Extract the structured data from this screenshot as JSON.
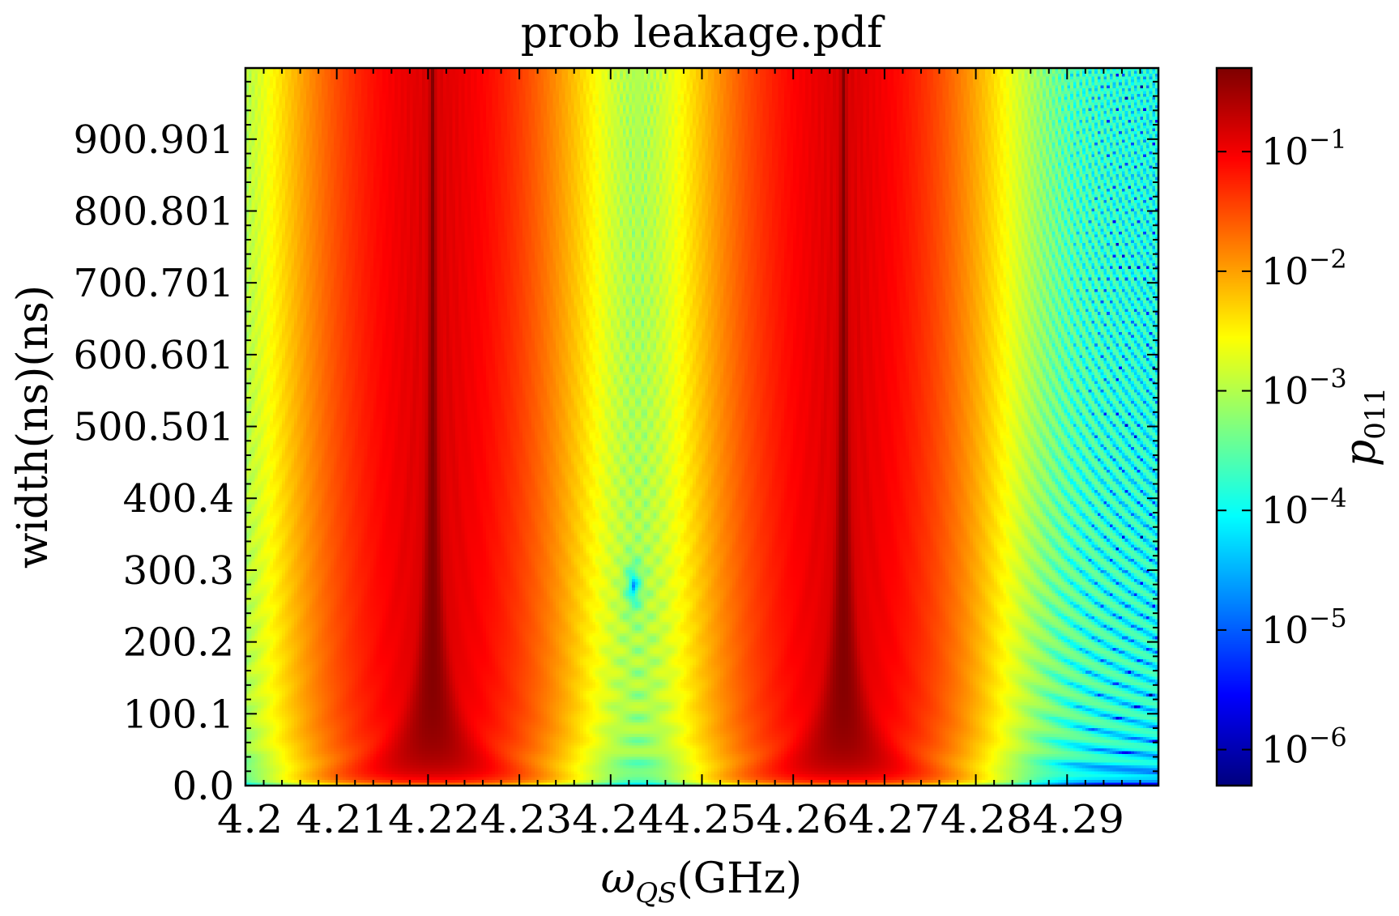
{
  "chart_data": {
    "type": "heatmap",
    "title": "prob leakage.pdf",
    "xlabel": "ω_QS(GHz)",
    "xlabel_base": "ω",
    "xlabel_sub": "QS",
    "xlabel_unit": "(GHz)",
    "ylabel": "width(ns)(ns)",
    "x_range": [
      4.2,
      4.3
    ],
    "y_range": [
      0.0,
      1000.0
    ],
    "x_ticks": [
      {
        "value": 4.2,
        "label": "4.2"
      },
      {
        "value": 4.21,
        "label": "4.21"
      },
      {
        "value": 4.22,
        "label": "4.22"
      },
      {
        "value": 4.23,
        "label": "4.23"
      },
      {
        "value": 4.24,
        "label": "4.24"
      },
      {
        "value": 4.25,
        "label": "4.25"
      },
      {
        "value": 4.26,
        "label": "4.26"
      },
      {
        "value": 4.27,
        "label": "4.27"
      },
      {
        "value": 4.28,
        "label": "4.28"
      },
      {
        "value": 4.29,
        "label": "4.29"
      }
    ],
    "x_tick_text": "4.2 4.214.224.234.244.254.264.274.284.29",
    "y_ticks": [
      {
        "value": 0.0,
        "label": "0.0"
      },
      {
        "value": 100.1,
        "label": "100.1"
      },
      {
        "value": 200.2,
        "label": "200.2"
      },
      {
        "value": 300.3,
        "label": "300.3"
      },
      {
        "value": 400.4,
        "label": "400.4"
      },
      {
        "value": 500.501,
        "label": "500.501"
      },
      {
        "value": 600.601,
        "label": "600.601"
      },
      {
        "value": 700.701,
        "label": "700.701"
      },
      {
        "value": 800.801,
        "label": "800.801"
      },
      {
        "value": 900.901,
        "label": "900.901"
      }
    ],
    "colorbar": {
      "label": "p_011",
      "label_base": "p",
      "label_sub": "011",
      "scale": "log",
      "colormap": "jet",
      "range": [
        5e-07,
        0.5
      ],
      "ticks": [
        {
          "value": 1e-06,
          "base": "10",
          "exp": "−6"
        },
        {
          "value": 1e-05,
          "base": "10",
          "exp": "−5"
        },
        {
          "value": 0.0001,
          "base": "10",
          "exp": "−4"
        },
        {
          "value": 0.001,
          "base": "10",
          "exp": "−3"
        },
        {
          "value": 0.01,
          "base": "10",
          "exp": "−2"
        },
        {
          "value": 0.1,
          "base": "10",
          "exp": "−1"
        }
      ]
    },
    "resonances": [
      {
        "center": 4.2205,
        "peak": 0.48
      },
      {
        "center": 4.2655,
        "peak": 0.48
      }
    ],
    "central_node": {
      "x": 4.2425,
      "y": 278
    },
    "grid": false
  }
}
